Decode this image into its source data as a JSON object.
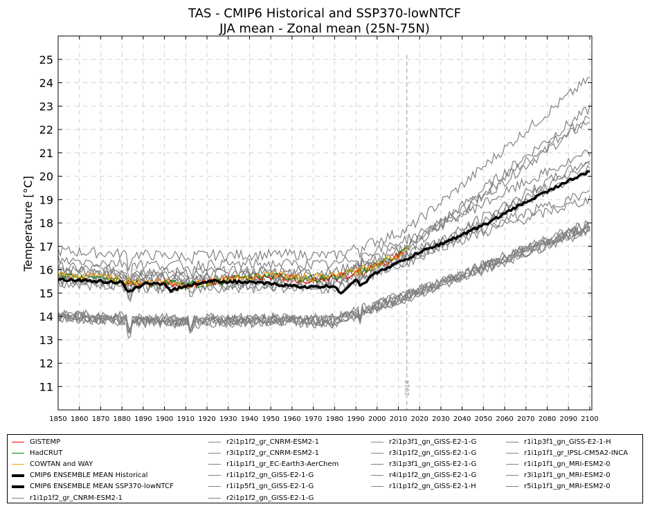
{
  "chart_data": {
    "type": "line",
    "title": "TAS - CMIP6 Historical and SSP370-lowNTCF",
    "subtitle": "JJA mean - Zonal mean (25N-75N)",
    "xlabel": "",
    "ylabel": "Temperature [°C]",
    "xlim": [
      1850,
      2101
    ],
    "ylim": [
      10,
      26
    ],
    "x_ticks": [
      1850,
      1860,
      1870,
      1880,
      1890,
      1900,
      1910,
      1920,
      1930,
      1940,
      1950,
      1960,
      1970,
      1980,
      1990,
      2000,
      2010,
      2020,
      2030,
      2040,
      2050,
      2060,
      2070,
      2080,
      2090,
      2100
    ],
    "y_ticks": [
      11,
      12,
      13,
      14,
      15,
      16,
      17,
      18,
      19,
      20,
      21,
      22,
      23,
      24,
      25
    ],
    "grid": true,
    "vline": {
      "x": 2014,
      "label": "2014"
    },
    "observations": [
      {
        "name": "GISTEMP",
        "color": "#ff0000",
        "x": [
          1880,
          1890,
          1900,
          1910,
          1920,
          1930,
          1940,
          1950,
          1960,
          1970,
          1980,
          1990,
          2000,
          2010,
          2015
        ],
        "y": [
          15.4,
          15.35,
          15.45,
          15.3,
          15.45,
          15.55,
          15.65,
          15.75,
          15.6,
          15.55,
          15.65,
          15.8,
          16.2,
          16.6,
          16.9
        ]
      },
      {
        "name": "HadCRUT",
        "color": "#008000",
        "x": [
          1850,
          1860,
          1870,
          1880,
          1890,
          1900,
          1910,
          1920,
          1930,
          1940,
          1950,
          1960,
          1970,
          1980,
          1990,
          2000,
          2010,
          2015
        ],
        "y": [
          15.7,
          15.6,
          15.75,
          15.5,
          15.4,
          15.45,
          15.3,
          15.45,
          15.55,
          15.65,
          15.8,
          15.65,
          15.6,
          15.7,
          15.85,
          16.2,
          16.6,
          16.9
        ]
      },
      {
        "name": "COWTAN and WAY",
        "color": "#ffa500",
        "x": [
          1850,
          1860,
          1870,
          1880,
          1890,
          1900,
          1910,
          1920,
          1930,
          1940,
          1950,
          1960,
          1970,
          1980,
          1990,
          2000,
          2010,
          2015
        ],
        "y": [
          15.75,
          15.65,
          15.8,
          15.55,
          15.45,
          15.5,
          15.35,
          15.5,
          15.6,
          15.7,
          15.85,
          15.7,
          15.65,
          15.75,
          15.9,
          16.25,
          16.65,
          16.95
        ]
      }
    ],
    "ensemble_means": [
      {
        "name": "CMIP6 ENSEMBLE MEAN Historical",
        "color": "#000000",
        "x": [
          1850,
          1860,
          1870,
          1880,
          1883,
          1890,
          1900,
          1903,
          1910,
          1920,
          1930,
          1940,
          1950,
          1960,
          1970,
          1980,
          1983,
          1990,
          1992,
          2000,
          2010,
          2014
        ],
        "y": [
          15.6,
          15.55,
          15.5,
          15.45,
          15.0,
          15.4,
          15.4,
          15.1,
          15.3,
          15.5,
          15.5,
          15.45,
          15.4,
          15.3,
          15.25,
          15.3,
          15.0,
          15.6,
          15.3,
          15.9,
          16.3,
          16.45
        ]
      },
      {
        "name": "CMIP6 ENSEMBLE MEAN SSP370-lowNTCF",
        "color": "#000000",
        "x": [
          2014,
          2020,
          2030,
          2040,
          2050,
          2060,
          2070,
          2080,
          2090,
          2100
        ],
        "y": [
          16.45,
          16.75,
          17.1,
          17.5,
          17.9,
          18.4,
          18.9,
          19.35,
          19.8,
          20.2
        ]
      }
    ],
    "members": [
      {
        "name": "r1i1p1f2_gr_CNRM-ESM2-1",
        "color": "#808080",
        "offset": 0.5,
        "end": 22.6
      },
      {
        "name": "r2i1p1f2_gr_CNRM-ESM2-1",
        "color": "#808080",
        "offset": 0.4,
        "end": 22.4
      },
      {
        "name": "r3i1p1f2_gr_CNRM-ESM2-1",
        "color": "#808080",
        "offset": 0.6,
        "end": 22.9
      },
      {
        "name": "r1i1p1f1_gr_EC-Earth3-AerChem",
        "color": "#808080",
        "offset": 1.3,
        "end": 24.2
      },
      {
        "name": "r1i1p1f2_gn_GISS-E2-1-G",
        "color": "#808080",
        "offset": -1.5,
        "end": 17.8
      },
      {
        "name": "r1i1p5f1_gn_GISS-E2-1-G",
        "color": "#808080",
        "offset": -1.4,
        "end": 17.9
      },
      {
        "name": "r2i1p1f2_gn_GISS-E2-1-G",
        "color": "#808080",
        "offset": -1.6,
        "end": 17.7
      },
      {
        "name": "r2i1p3f1_gn_GISS-E2-1-G",
        "color": "#808080",
        "offset": -1.5,
        "end": 18.0
      },
      {
        "name": "r3i1p1f2_gn_GISS-E2-1-G",
        "color": "#808080",
        "offset": -1.45,
        "end": 17.8
      },
      {
        "name": "r3i1p3f1_gn_GISS-E2-1-G",
        "color": "#808080",
        "offset": -1.55,
        "end": 17.9
      },
      {
        "name": "r4i1p1f2_gn_GISS-E2-1-G",
        "color": "#808080",
        "offset": -1.5,
        "end": 17.7
      },
      {
        "name": "r1i1p1f2_gn_GISS-E2-1-H",
        "color": "#808080",
        "offset": 0.2,
        "end": 19.0
      },
      {
        "name": "r1i1p3f1_gn_GISS-E2-1-H",
        "color": "#808080",
        "offset": 0.3,
        "end": 19.3
      },
      {
        "name": "r1i1p1f1_gr_IPSL-CM5A2-INCA",
        "color": "#808080",
        "offset": 0.9,
        "end": 21.0
      },
      {
        "name": "r1i1p1f1_gn_MRI-ESM2-0",
        "color": "#808080",
        "offset": 0.0,
        "end": 20.5
      },
      {
        "name": "r3i1p1f1_gn_MRI-ESM2-0",
        "color": "#808080",
        "offset": 0.1,
        "end": 20.7
      },
      {
        "name": "r5i1p1f1_gn_MRI-ESM2-0",
        "color": "#808080",
        "offset": -0.1,
        "end": 20.3
      }
    ]
  },
  "legend": {
    "columns": [
      [
        "GISTEMP",
        "HadCRUT",
        "COWTAN and WAY",
        "CMIP6 ENSEMBLE MEAN Historical",
        "CMIP6 ENSEMBLE MEAN SSP370-lowNTCF",
        "r1i1p1f2_gr_CNRM-ESM2-1"
      ],
      [
        "r2i1p1f2_gr_CNRM-ESM2-1",
        "r3i1p1f2_gr_CNRM-ESM2-1",
        "r1i1p1f1_gr_EC-Earth3-AerChem",
        "r1i1p1f2_gn_GISS-E2-1-G",
        "r1i1p5f1_gn_GISS-E2-1-G",
        "r2i1p1f2_gn_GISS-E2-1-G"
      ],
      [
        "r2i1p3f1_gn_GISS-E2-1-G",
        "r3i1p1f2_gn_GISS-E2-1-G",
        "r3i1p3f1_gn_GISS-E2-1-G",
        "r4i1p1f2_gn_GISS-E2-1-G",
        "r1i1p1f2_gn_GISS-E2-1-H"
      ],
      [
        "r1i1p3f1_gn_GISS-E2-1-H",
        "r1i1p1f1_gr_IPSL-CM5A2-INCA",
        "r1i1p1f1_gn_MRI-ESM2-0",
        "r3i1p1f1_gn_MRI-ESM2-0",
        "r5i1p1f1_gn_MRI-ESM2-0"
      ]
    ]
  }
}
